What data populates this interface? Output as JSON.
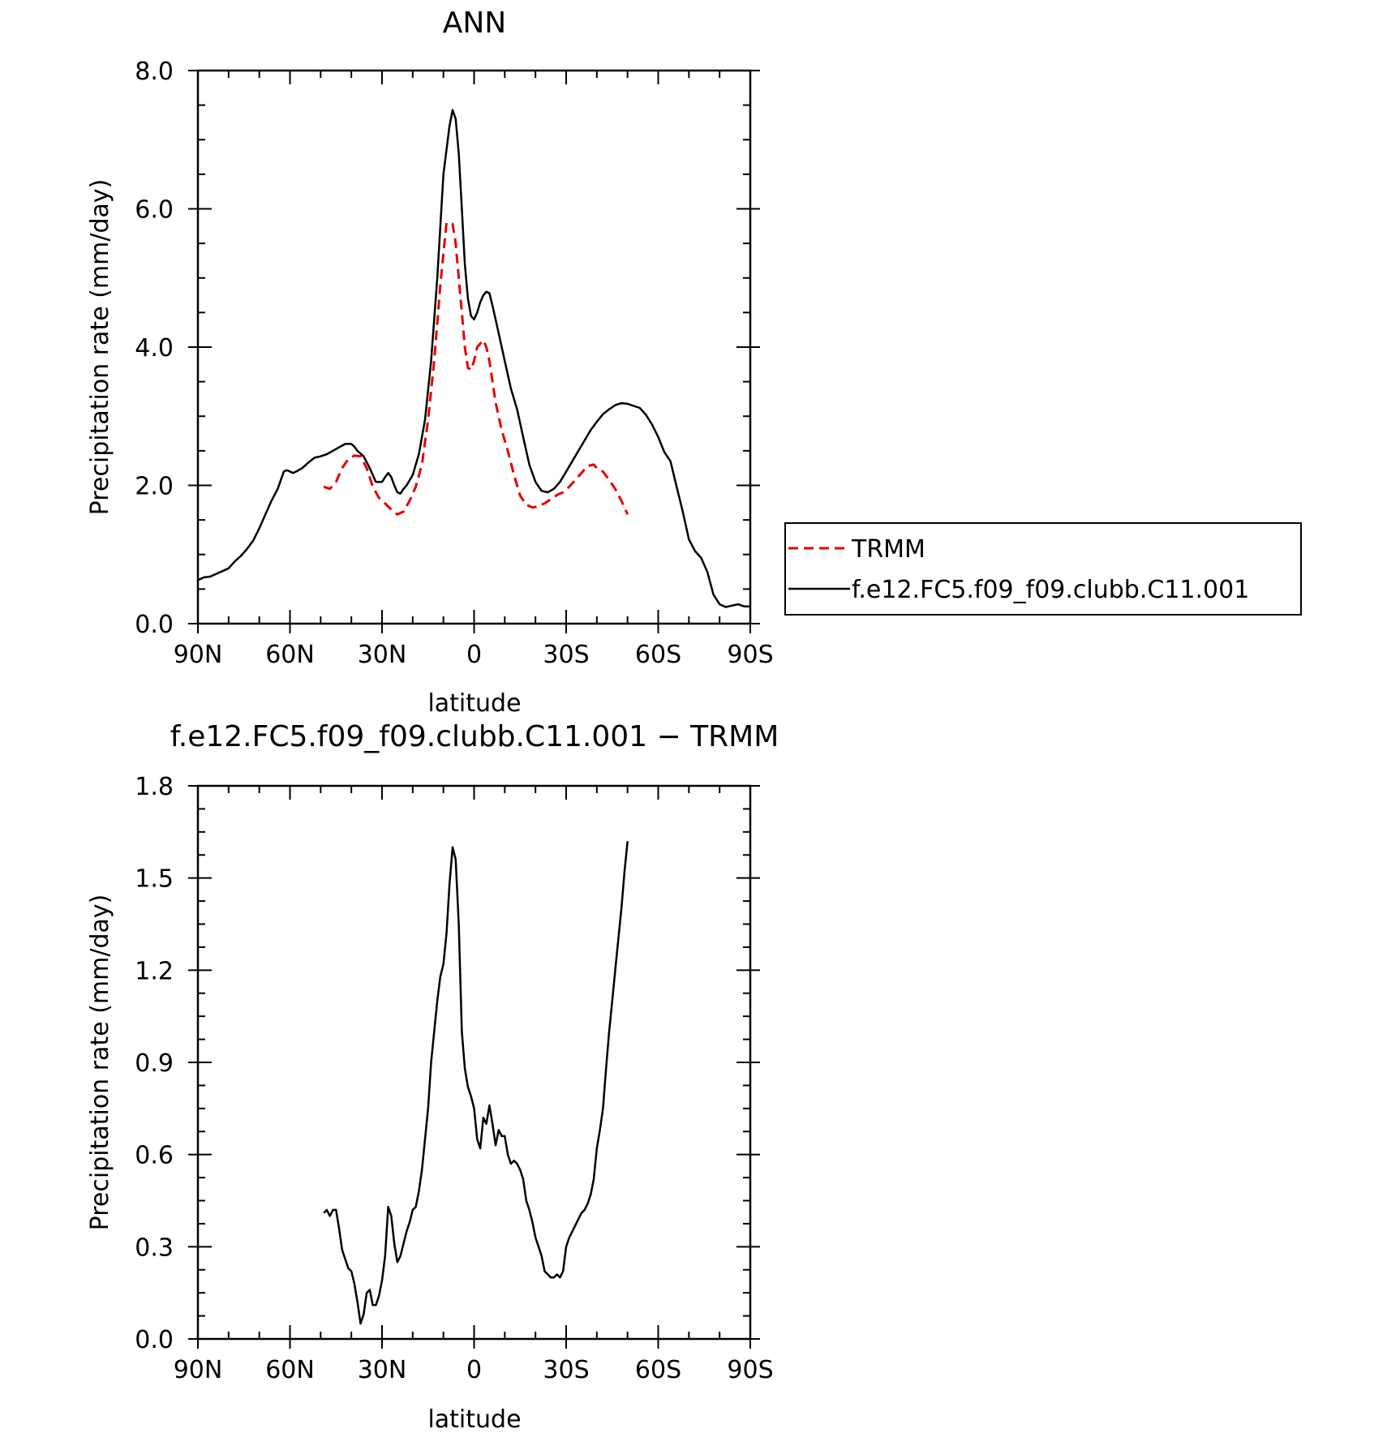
{
  "colors": {
    "trmm": "#e60000",
    "model": "#000000",
    "frame": "#000000"
  },
  "chart_data": [
    {
      "type": "line",
      "title": "ANN",
      "xlabel": "latitude",
      "ylabel": "Precipitation rate (mm/day)",
      "xlim": [
        90,
        -90
      ],
      "ylim": [
        0,
        8
      ],
      "xticks": [
        {
          "value": 90,
          "label": "90N"
        },
        {
          "value": 60,
          "label": "60N"
        },
        {
          "value": 30,
          "label": "30N"
        },
        {
          "value": 0,
          "label": "0"
        },
        {
          "value": -30,
          "label": "30S"
        },
        {
          "value": -60,
          "label": "60S"
        },
        {
          "value": -90,
          "label": "90S"
        }
      ],
      "yticks": [
        {
          "value": 0,
          "label": "0.0"
        },
        {
          "value": 2,
          "label": "2.0"
        },
        {
          "value": 4,
          "label": "4.0"
        },
        {
          "value": 6,
          "label": "6.0"
        },
        {
          "value": 8,
          "label": "8.0"
        }
      ],
      "legend": {
        "placement": "right",
        "entries": [
          "TRMM",
          "f.e12.FC5.f09_f09.clubb.C11.001"
        ]
      },
      "series": [
        {
          "name": "TRMM",
          "style": "dashed",
          "color": "#e60000",
          "x": [
            49,
            47,
            45,
            43,
            41,
            39,
            37,
            35,
            33,
            31,
            29,
            27,
            25,
            23,
            21,
            19,
            17,
            15,
            13,
            11,
            9,
            7,
            6,
            5,
            4,
            3,
            2,
            1,
            0,
            -1,
            -2,
            -3,
            -4,
            -5,
            -6,
            -7,
            -8,
            -9,
            -11,
            -13,
            -15,
            -17,
            -19,
            -21,
            -23,
            -25,
            -27,
            -29,
            -31,
            -33,
            -35,
            -37,
            -39,
            -40,
            -42,
            -44,
            -46,
            -48,
            -50
          ],
          "y": [
            1.98,
            1.95,
            2.05,
            2.25,
            2.38,
            2.43,
            2.42,
            2.25,
            1.98,
            1.82,
            1.74,
            1.65,
            1.58,
            1.62,
            1.78,
            1.98,
            2.3,
            2.95,
            3.8,
            4.9,
            5.8,
            5.78,
            5.5,
            5.0,
            4.5,
            4.0,
            3.7,
            3.67,
            3.8,
            4.0,
            4.05,
            4.1,
            4.0,
            3.8,
            3.5,
            3.2,
            3.0,
            2.8,
            2.5,
            2.15,
            1.85,
            1.72,
            1.68,
            1.7,
            1.74,
            1.8,
            1.86,
            1.9,
            1.98,
            2.08,
            2.18,
            2.28,
            2.3,
            2.25,
            2.2,
            2.08,
            1.95,
            1.78,
            1.58
          ]
        },
        {
          "name": "f.e12.FC5.f09_f09.clubb.C11.001",
          "style": "solid",
          "color": "#000000",
          "x": [
            90,
            88,
            86,
            84,
            82,
            80,
            78,
            76,
            74,
            72,
            70,
            68,
            66,
            64,
            62,
            61,
            60,
            59,
            58,
            56,
            54,
            52,
            50,
            48,
            46,
            44,
            42,
            40,
            39,
            38,
            36,
            34,
            32,
            30,
            29,
            28,
            27,
            26,
            25,
            24,
            23,
            22,
            20,
            18,
            16,
            14,
            12,
            10,
            8,
            7,
            6,
            5,
            4,
            3,
            2,
            1,
            0,
            -1,
            -2,
            -3,
            -4,
            -5,
            -6,
            -8,
            -10,
            -12,
            -14,
            -16,
            -18,
            -20,
            -22,
            -24,
            -26,
            -28,
            -30,
            -32,
            -34,
            -36,
            -38,
            -40,
            -42,
            -44,
            -46,
            -48,
            -50,
            -52,
            -54,
            -56,
            -58,
            -60,
            -62,
            -64,
            -66,
            -68,
            -70,
            -72,
            -74,
            -76,
            -78,
            -80,
            -82,
            -84,
            -86,
            -88,
            -90
          ],
          "y": [
            0.63,
            0.67,
            0.68,
            0.72,
            0.76,
            0.8,
            0.9,
            0.98,
            1.08,
            1.2,
            1.38,
            1.58,
            1.78,
            1.95,
            2.2,
            2.22,
            2.2,
            2.18,
            2.2,
            2.25,
            2.33,
            2.4,
            2.42,
            2.45,
            2.5,
            2.55,
            2.6,
            2.6,
            2.56,
            2.5,
            2.42,
            2.25,
            2.05,
            2.05,
            2.12,
            2.18,
            2.12,
            2.0,
            1.9,
            1.88,
            1.95,
            2.0,
            2.15,
            2.45,
            2.95,
            3.8,
            5.0,
            6.5,
            7.2,
            7.43,
            7.3,
            6.8,
            6.0,
            5.2,
            4.7,
            4.45,
            4.4,
            4.5,
            4.65,
            4.75,
            4.8,
            4.78,
            4.6,
            4.2,
            3.8,
            3.4,
            3.1,
            2.7,
            2.3,
            2.05,
            1.92,
            1.9,
            1.95,
            2.05,
            2.2,
            2.35,
            2.5,
            2.65,
            2.8,
            2.92,
            3.03,
            3.1,
            3.16,
            3.19,
            3.18,
            3.15,
            3.12,
            3.02,
            2.88,
            2.7,
            2.48,
            2.35,
            1.98,
            1.62,
            1.22,
            1.05,
            0.95,
            0.75,
            0.42,
            0.28,
            0.24,
            0.26,
            0.28,
            0.25,
            0.25
          ]
        }
      ]
    },
    {
      "type": "line",
      "title": "f.e12.FC5.f09_f09.clubb.C11.001 − TRMM",
      "xlabel": "latitude",
      "ylabel": "Precipitation rate (mm/day)",
      "xlim": [
        90,
        -90
      ],
      "ylim": [
        0,
        1.8
      ],
      "xticks": [
        {
          "value": 90,
          "label": "90N"
        },
        {
          "value": 60,
          "label": "60N"
        },
        {
          "value": 30,
          "label": "30N"
        },
        {
          "value": 0,
          "label": "0"
        },
        {
          "value": -30,
          "label": "30S"
        },
        {
          "value": -60,
          "label": "60S"
        },
        {
          "value": -90,
          "label": "90S"
        }
      ],
      "yticks": [
        {
          "value": 0,
          "label": "0.0"
        },
        {
          "value": 0.3,
          "label": "0.3"
        },
        {
          "value": 0.6,
          "label": "0.6"
        },
        {
          "value": 0.9,
          "label": "0.9"
        },
        {
          "value": 1.2,
          "label": "1.2"
        },
        {
          "value": 1.5,
          "label": "1.5"
        },
        {
          "value": 1.8,
          "label": "1.8"
        }
      ],
      "series": [
        {
          "style": "solid",
          "color": "#000000",
          "x": [
            49,
            48,
            47,
            46,
            45,
            44,
            43,
            42,
            41,
            40,
            39,
            38,
            37,
            36,
            35,
            34,
            33,
            32,
            31,
            30,
            29,
            28,
            27,
            26,
            25,
            24,
            23,
            22,
            21,
            20,
            19,
            18,
            17,
            16,
            15,
            14,
            13,
            12,
            11,
            10,
            9,
            8,
            7,
            6,
            5,
            4,
            3,
            2,
            1,
            0,
            -1,
            -2,
            -3,
            -4,
            -5,
            -6,
            -7,
            -8,
            -9,
            -10,
            -11,
            -12,
            -13,
            -14,
            -15,
            -16,
            -17,
            -18,
            -19,
            -20,
            -21,
            -22,
            -23,
            -24,
            -25,
            -26,
            -27,
            -28,
            -29,
            -30,
            -31,
            -32,
            -33,
            -34,
            -35,
            -36,
            -37,
            -38,
            -39,
            -40,
            -41,
            -42,
            -43,
            -44,
            -45,
            -46,
            -47,
            -48,
            -49,
            -50
          ],
          "y": [
            0.41,
            0.42,
            0.4,
            0.42,
            0.42,
            0.36,
            0.29,
            0.26,
            0.23,
            0.22,
            0.18,
            0.12,
            0.05,
            0.08,
            0.15,
            0.16,
            0.11,
            0.11,
            0.14,
            0.19,
            0.27,
            0.43,
            0.4,
            0.31,
            0.25,
            0.27,
            0.31,
            0.35,
            0.38,
            0.42,
            0.43,
            0.48,
            0.55,
            0.65,
            0.75,
            0.9,
            1.0,
            1.1,
            1.18,
            1.22,
            1.32,
            1.48,
            1.6,
            1.56,
            1.35,
            1.0,
            0.88,
            0.82,
            0.79,
            0.75,
            0.65,
            0.62,
            0.72,
            0.7,
            0.76,
            0.7,
            0.63,
            0.68,
            0.66,
            0.66,
            0.6,
            0.57,
            0.58,
            0.57,
            0.55,
            0.52,
            0.45,
            0.42,
            0.38,
            0.33,
            0.3,
            0.27,
            0.22,
            0.21,
            0.2,
            0.2,
            0.21,
            0.2,
            0.22,
            0.3,
            0.33,
            0.35,
            0.37,
            0.39,
            0.41,
            0.42,
            0.44,
            0.47,
            0.52,
            0.62,
            0.68,
            0.75,
            0.88,
            1.0,
            1.1,
            1.2,
            1.3,
            1.4,
            1.52,
            1.62
          ]
        }
      ]
    }
  ]
}
